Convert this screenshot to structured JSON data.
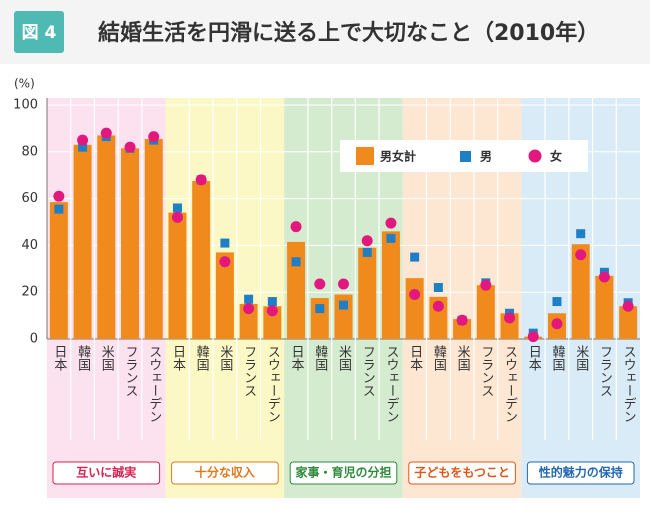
{
  "chart_data": {
    "type": "grouped-bar-markers",
    "figure_label": "図 4",
    "title": "結婚生活を円滑に送る上で大切なこと（2010年）",
    "y_label": "(%)",
    "ylim": [
      0,
      100
    ],
    "yticks": [
      0,
      20,
      40,
      60,
      80,
      100
    ],
    "groups": [
      {
        "name": "互いに誠実",
        "bg": "#fbe2ee",
        "label_color": "#d8204f",
        "categories": [
          "日本",
          "韓国",
          "米国",
          "フランス",
          "スウェーデン"
        ]
      },
      {
        "name": "十分な収入",
        "bg": "#fcf8c6",
        "label_color": "#e0791a",
        "categories": [
          "日本",
          "韓国",
          "米国",
          "フランス",
          "スウェーデン"
        ]
      },
      {
        "name": "家事・育児の分担",
        "bg": "#d5ebd0",
        "label_color": "#2e8a3a",
        "categories": [
          "日本",
          "韓国",
          "米国",
          "フランス",
          "スウェーデン"
        ]
      },
      {
        "name": "子どもをもつこと",
        "bg": "#fde6d2",
        "label_color": "#e0541a",
        "categories": [
          "日本",
          "韓国",
          "米国",
          "フランス",
          "スウェーデン"
        ]
      },
      {
        "name": "性的魅力の保持",
        "bg": "#d9ebf7",
        "label_color": "#2467b0",
        "categories": [
          "日本",
          "韓国",
          "米国",
          "フランス",
          "スウェーデン"
        ]
      }
    ],
    "series": [
      {
        "name": "男女計",
        "color": "#f08a1c",
        "marker": "bar",
        "values": [
          58.5,
          83,
          87,
          81.5,
          85.5,
          54,
          67.5,
          37,
          15,
          14,
          41.5,
          17.5,
          19,
          39,
          46,
          26,
          18,
          8.5,
          23,
          11,
          1,
          11,
          40.5,
          27,
          14
        ]
      },
      {
        "name": "男",
        "color": "#1d7fc6",
        "marker": "square",
        "values": [
          55.5,
          82,
          86.5,
          81.5,
          85,
          56,
          68,
          41,
          17,
          16,
          33,
          13,
          14.5,
          37,
          43,
          35,
          22,
          8,
          24,
          11,
          2.5,
          16,
          45,
          28.5,
          15.5
        ]
      },
      {
        "name": "女",
        "color": "#e2187f",
        "marker": "circle",
        "values": [
          61,
          85,
          88,
          82,
          86.5,
          52,
          68,
          33,
          13,
          12,
          48,
          23.5,
          23.5,
          42,
          49.5,
          19,
          14,
          8,
          23,
          9,
          1,
          6.5,
          36,
          26.5,
          14
        ]
      }
    ]
  }
}
